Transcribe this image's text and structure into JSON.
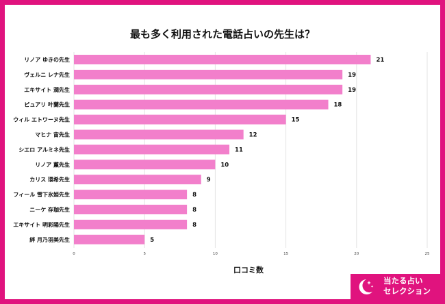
{
  "title": "最も多く利用された電話占いの先生は？",
  "chart_data": {
    "type": "bar",
    "orientation": "horizontal",
    "categories": [
      "リノア ゆきの先生",
      "ヴェルニ レナ先生",
      "エキサイト 潤先生",
      "ピュアリ 叶蘭先生",
      "ウィル エトワーヌ先生",
      "マヒナ 宙先生",
      "シエロ アルミネ先生",
      "リノア 薫先生",
      "カリス 環希先生",
      "フィール 雪下氷姫先生",
      "ニーケ 存珈先生",
      "エキサイト 明彩陽先生",
      "絆 月乃羽美先生"
    ],
    "values": [
      21,
      19,
      19,
      18,
      15,
      12,
      11,
      10,
      9,
      8,
      8,
      8,
      5
    ],
    "xlabel": "口コミ数",
    "xlim": [
      0,
      25
    ],
    "xticks": [
      0,
      5,
      10,
      15,
      20,
      25
    ],
    "grid": true,
    "bar_color": "#f27fcb"
  },
  "brand": {
    "line1": "当たる占い",
    "line2": "セレクション",
    "icon": "crescent-moon-stars-icon",
    "color": "#e0137e"
  }
}
